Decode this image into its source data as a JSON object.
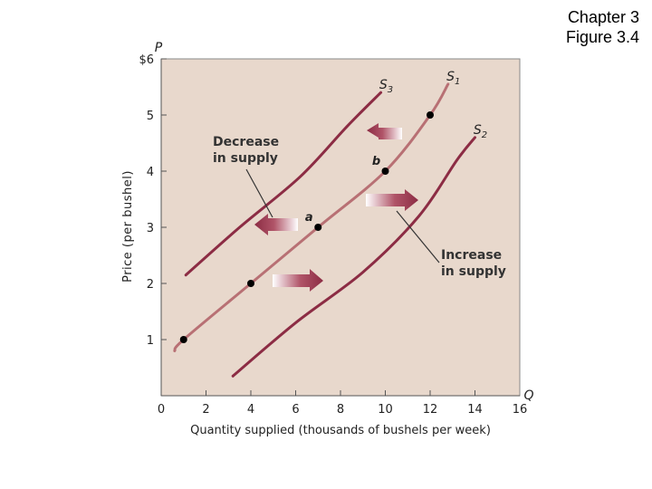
{
  "slide": {
    "chapter": "Chapter 3",
    "figure": "Figure 3.4"
  },
  "chart_data": {
    "type": "line",
    "xlabel": "Quantity supplied (thousands of bushels per week)",
    "ylabel": "Price (per bushel)",
    "x_axis_symbol": "Q",
    "y_axis_symbol": "P",
    "xlim": [
      0,
      16
    ],
    "ylim": [
      0,
      6
    ],
    "x_ticks": [
      "0",
      "2",
      "4",
      "6",
      "8",
      "10",
      "12",
      "14",
      "16"
    ],
    "y_ticks": [
      "1",
      "2",
      "3",
      "4",
      "5",
      "$6"
    ],
    "grid": false,
    "colors": {
      "plot_bg": "#e8d8cc",
      "s1": "#b87074",
      "shifted": "#8c2c44",
      "point": "#000000",
      "arrow": "#9c3d52"
    },
    "series": [
      {
        "name": "S1",
        "points": [
          [
            0.6,
            0.8
          ],
          [
            1,
            1
          ],
          [
            4,
            2
          ],
          [
            7,
            3
          ],
          [
            10,
            4
          ],
          [
            12,
            5
          ],
          [
            12.8,
            5.55
          ]
        ]
      },
      {
        "name": "S2",
        "points": [
          [
            3.2,
            0.35
          ],
          [
            6,
            1.3
          ],
          [
            9,
            2.2
          ],
          [
            11.5,
            3.2
          ],
          [
            13.2,
            4.2
          ],
          [
            14,
            4.6
          ]
        ]
      },
      {
        "name": "S3",
        "points": [
          [
            1.1,
            2.15
          ],
          [
            3.5,
            3
          ],
          [
            6.2,
            3.9
          ],
          [
            8.3,
            4.8
          ],
          [
            9.8,
            5.4
          ]
        ]
      }
    ],
    "points": [
      {
        "x": 1,
        "y": 1,
        "label": ""
      },
      {
        "x": 4,
        "y": 2,
        "label": ""
      },
      {
        "x": 7,
        "y": 3,
        "label": "a"
      },
      {
        "x": 10,
        "y": 4,
        "label": "b"
      },
      {
        "x": 12,
        "y": 5,
        "label": ""
      }
    ],
    "annotations": [
      {
        "line1": "Decrease",
        "line2": "in supply"
      },
      {
        "line1": "Increase",
        "line2": "in supply"
      }
    ]
  }
}
